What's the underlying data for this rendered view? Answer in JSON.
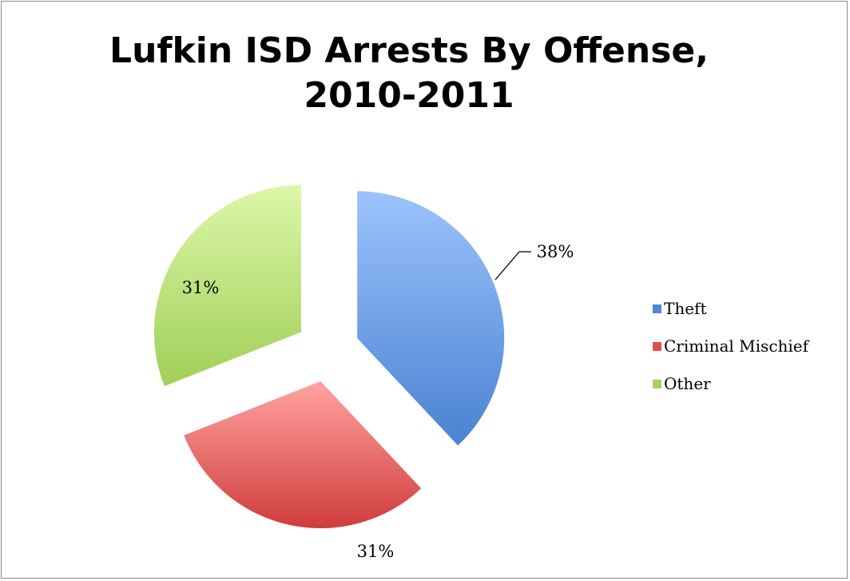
{
  "chart_data": {
    "type": "pie",
    "title": "Lufkin ISD Arrests By Offense, 2010-2011",
    "slices": [
      {
        "name": "Theft",
        "value": 38,
        "label": "38%",
        "color": "#5b8fd9"
      },
      {
        "name": "Criminal Mischief",
        "value": 31,
        "label": "31%",
        "color": "#e15a58"
      },
      {
        "name": "Other",
        "value": 31,
        "label": "31%",
        "color": "#a4d25e"
      }
    ],
    "legend_position": "right",
    "exploded": true
  }
}
